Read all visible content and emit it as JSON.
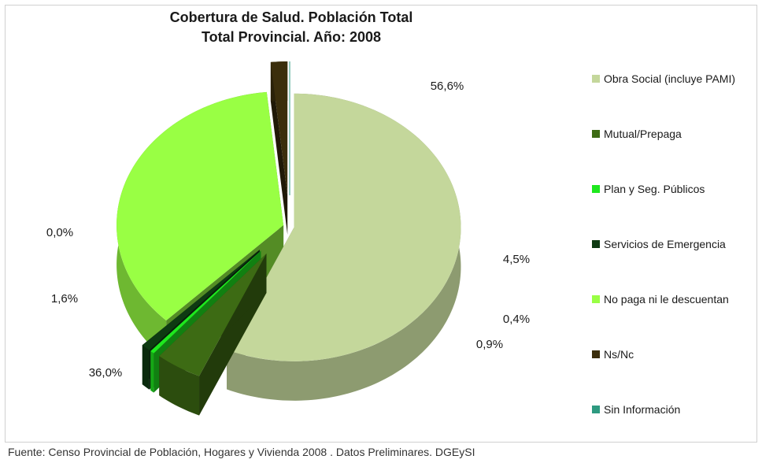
{
  "chart_data": {
    "type": "pie",
    "style": "3d-exploded",
    "title": "Cobertura de Salud. Población Total",
    "subtitle": "Total Provincial. Año: 2008",
    "legend_position": "right",
    "slices": [
      {
        "label": "Obra Social (incluye PAMI)",
        "value": 56.6,
        "display": "56,6%",
        "color": "#c4d79b"
      },
      {
        "label": "Mutual/Prepaga",
        "value": 4.5,
        "display": "4,5%",
        "color": "#3d6b14"
      },
      {
        "label": "Plan y Seg. Públicos",
        "value": 0.4,
        "display": "0,4%",
        "color": "#1ee81e"
      },
      {
        "label": "Servicios de Emergencia",
        "value": 0.9,
        "display": "0,9%",
        "color": "#0e3a12"
      },
      {
        "label": "No paga ni le descuentan",
        "value": 36.0,
        "display": "36,0%",
        "color": "#99ff44"
      },
      {
        "label": "Ns/Nc",
        "value": 1.6,
        "display": "1,6%",
        "color": "#3b2e0c"
      },
      {
        "label": "Sin Información",
        "value": 0.0,
        "display": "0,0%",
        "color": "#2e9a80"
      }
    ]
  },
  "source": "Fuente: Censo Provincial de Población, Hogares y Vivienda 2008 . Datos Preliminares. DGEySI"
}
